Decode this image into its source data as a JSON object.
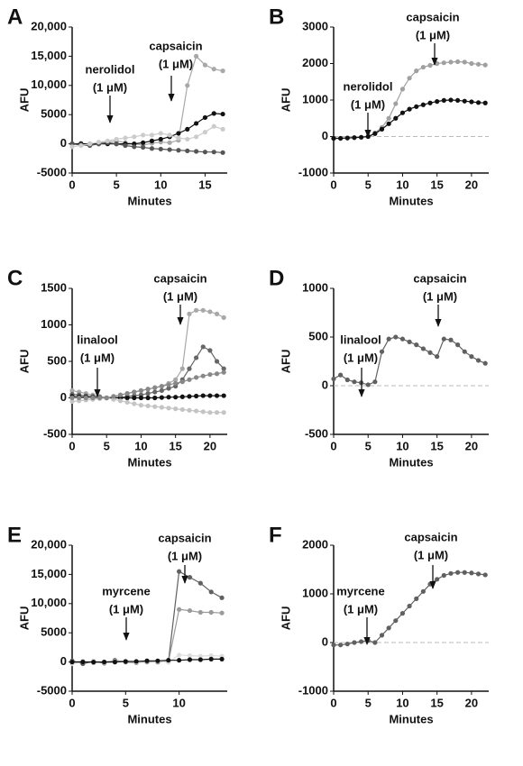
{
  "chart_data": [
    {
      "type": "line",
      "panel": "A",
      "xlabel": "Minutes",
      "ylabel": "AFU",
      "xlim": [
        0,
        17.5
      ],
      "xticks": [
        0,
        5,
        10,
        15
      ],
      "ylim": [
        -5000,
        20000
      ],
      "yticks": [
        {
          "value": -5000,
          "label": "-5000"
        },
        0,
        5000,
        {
          "value": 10000,
          "label": "10,000"
        },
        {
          "value": 15000,
          "label": "15,000"
        },
        {
          "value": 20000,
          "label": "20,000"
        }
      ],
      "annotations": [
        [
          "nerolidol",
          "(1 μM)"
        ],
        [
          "capsaicin",
          "(1 μM)"
        ]
      ],
      "x": [
        0,
        1,
        2,
        3,
        4,
        5,
        6,
        7,
        8,
        9,
        10,
        11,
        12,
        13,
        14,
        15,
        16,
        17
      ],
      "series": [
        {
          "color": "#a8a8a8",
          "values": [
            0,
            100,
            -100,
            200,
            300,
            500,
            200,
            0,
            -200,
            100,
            300,
            200,
            600,
            10000,
            15000,
            13500,
            12800,
            12500
          ]
        },
        {
          "color": "#111111",
          "values": [
            0,
            0,
            0,
            0,
            0,
            0,
            0,
            0,
            200,
            500,
            800,
            1200,
            1800,
            2500,
            3500,
            4500,
            5200,
            5100
          ]
        },
        {
          "color": "#555555",
          "values": [
            0,
            -200,
            -300,
            0,
            200,
            0,
            -300,
            -500,
            -600,
            -800,
            -900,
            -1000,
            -1100,
            -1200,
            -1300,
            -1400,
            -1400,
            -1500
          ]
        },
        {
          "color": "#cccccc",
          "values": [
            -500,
            -300,
            0,
            300,
            500,
            800,
            1000,
            1200,
            1500,
            1500,
            1800,
            1500,
            1000,
            800,
            1200,
            2000,
            3000,
            2500
          ]
        }
      ]
    },
    {
      "type": "line",
      "panel": "B",
      "xlabel": "Minutes",
      "ylabel": "AFU",
      "zero_line": true,
      "xlim": [
        0,
        22.5
      ],
      "xticks": [
        0,
        5,
        10,
        15,
        20
      ],
      "ylim": [
        -1000,
        3000
      ],
      "yticks": [
        -1000,
        0,
        1000,
        2000,
        3000
      ],
      "annotations": [
        [
          "nerolidol",
          "(1 μM)"
        ],
        [
          "capsaicin",
          "(1 μM)"
        ]
      ],
      "x": [
        0,
        1,
        2,
        3,
        4,
        5,
        6,
        7,
        8,
        9,
        10,
        11,
        12,
        13,
        14,
        15,
        16,
        17,
        18,
        19,
        20,
        21,
        22
      ],
      "series": [
        {
          "color": "#a0a0a0",
          "values": [
            -50,
            -50,
            -40,
            -30,
            -20,
            0,
            100,
            250,
            500,
            900,
            1300,
            1600,
            1800,
            1900,
            1950,
            2000,
            2020,
            2040,
            2050,
            2040,
            2000,
            1980,
            1960
          ]
        },
        {
          "color": "#111111",
          "values": [
            -50,
            -50,
            -40,
            -30,
            -20,
            0,
            80,
            200,
            350,
            500,
            650,
            750,
            820,
            870,
            920,
            960,
            990,
            1000,
            990,
            970,
            950,
            930,
            920
          ]
        }
      ]
    },
    {
      "type": "line",
      "panel": "C",
      "xlabel": "Minutes",
      "ylabel": "AFU",
      "xlim": [
        0,
        22.5
      ],
      "xticks": [
        0,
        5,
        10,
        15,
        20
      ],
      "ylim": [
        -500,
        1500
      ],
      "yticks": [
        -500,
        0,
        500,
        1000,
        1500
      ],
      "annotations": [
        [
          "linalool",
          "(1 μM)"
        ],
        [
          "capsaicin",
          "(1 μM)"
        ]
      ],
      "x": [
        0,
        1,
        2,
        3,
        4,
        5,
        6,
        7,
        8,
        9,
        10,
        11,
        12,
        13,
        14,
        15,
        16,
        17,
        18,
        19,
        20,
        21,
        22
      ],
      "series": [
        {
          "color": "#a8a8a8",
          "values": [
            100,
            80,
            60,
            40,
            20,
            0,
            20,
            40,
            60,
            80,
            100,
            120,
            140,
            160,
            200,
            250,
            400,
            1150,
            1200,
            1200,
            1180,
            1150,
            1100
          ]
        },
        {
          "color": "#666666",
          "values": [
            50,
            40,
            30,
            20,
            10,
            0,
            0,
            10,
            20,
            30,
            40,
            60,
            80,
            100,
            130,
            160,
            250,
            400,
            550,
            700,
            650,
            500,
            400
          ]
        },
        {
          "color": "#111111",
          "values": [
            20,
            15,
            10,
            5,
            0,
            0,
            0,
            0,
            0,
            0,
            0,
            0,
            0,
            5,
            10,
            10,
            15,
            20,
            25,
            30,
            30,
            30,
            30
          ]
        },
        {
          "color": "#c4c4c4",
          "values": [
            -50,
            -40,
            -30,
            -20,
            -10,
            0,
            -20,
            -40,
            -60,
            -80,
            -100,
            -110,
            -120,
            -130,
            -140,
            -150,
            -160,
            -170,
            -180,
            -190,
            -200,
            -200,
            -200
          ]
        },
        {
          "color": "#888888",
          "values": [
            0,
            0,
            0,
            0,
            0,
            0,
            20,
            40,
            60,
            80,
            100,
            120,
            140,
            160,
            180,
            200,
            220,
            250,
            280,
            300,
            320,
            330,
            350
          ]
        }
      ]
    },
    {
      "type": "line",
      "panel": "D",
      "xlabel": "Minutes",
      "ylabel": "AFU",
      "zero_line": true,
      "xlim": [
        0,
        22.5
      ],
      "xticks": [
        0,
        5,
        10,
        15,
        20
      ],
      "ylim": [
        -500,
        1000
      ],
      "yticks": [
        -500,
        0,
        500,
        1000
      ],
      "annotations": [
        [
          "linalool",
          "(1 μM)"
        ],
        [
          "capsaicin",
          "(1 μM)"
        ]
      ],
      "x": [
        0,
        1,
        2,
        3,
        4,
        5,
        6,
        7,
        8,
        9,
        10,
        11,
        12,
        13,
        14,
        15,
        16,
        17,
        18,
        19,
        20,
        21,
        22
      ],
      "series": [
        {
          "color": "#606060",
          "values": [
            70,
            110,
            60,
            40,
            30,
            10,
            40,
            350,
            480,
            500,
            480,
            450,
            420,
            380,
            340,
            300,
            480,
            470,
            420,
            350,
            300,
            260,
            230
          ]
        }
      ]
    },
    {
      "type": "line",
      "panel": "E",
      "xlabel": "Minutes",
      "ylabel": "AFU",
      "xlim": [
        0,
        14.5
      ],
      "xticks": [
        0,
        5,
        10
      ],
      "ylim": [
        -5000,
        20000
      ],
      "yticks": [
        {
          "value": -5000,
          "label": "-5000"
        },
        0,
        5000,
        {
          "value": 10000,
          "label": "10,000"
        },
        {
          "value": 15000,
          "label": "15,000"
        },
        {
          "value": 20000,
          "label": "20,000"
        }
      ],
      "annotations": [
        [
          "myrcene",
          "(1 μM)"
        ],
        [
          "capsaicin",
          "(1 μM)"
        ]
      ],
      "x": [
        0,
        1,
        2,
        3,
        4,
        5,
        6,
        7,
        8,
        9,
        10,
        11,
        12,
        13,
        14
      ],
      "series": [
        {
          "color": "#606060",
          "values": [
            200,
            -300,
            100,
            -200,
            300,
            0,
            -100,
            200,
            0,
            100,
            15500,
            14500,
            13500,
            12000,
            11000
          ]
        },
        {
          "color": "#9a9a9a",
          "values": [
            0,
            100,
            -100,
            0,
            200,
            100,
            0,
            0,
            100,
            0,
            9000,
            8800,
            8500,
            8500,
            8400
          ]
        },
        {
          "color": "#dddddd",
          "values": [
            -300,
            0,
            200,
            -100,
            0,
            100,
            0,
            200,
            100,
            0,
            1200,
            1100,
            1000,
            1100,
            1000
          ]
        },
        {
          "color": "#111111",
          "values": [
            0,
            0,
            0,
            0,
            0,
            100,
            100,
            200,
            200,
            300,
            300,
            400,
            400,
            500,
            500
          ]
        }
      ]
    },
    {
      "type": "line",
      "panel": "F",
      "xlabel": "Minutes",
      "ylabel": "AFU",
      "zero_line": true,
      "xlim": [
        0,
        22.5
      ],
      "xticks": [
        0,
        5,
        10,
        15,
        20
      ],
      "ylim": [
        -1000,
        2000
      ],
      "yticks": [
        -1000,
        0,
        1000,
        2000
      ],
      "annotations": [
        [
          "myrcene",
          "(1 μM)"
        ],
        [
          "capsaicin",
          "(1 μM)"
        ]
      ],
      "x": [
        0,
        1,
        2,
        3,
        4,
        5,
        6,
        7,
        8,
        9,
        10,
        11,
        12,
        13,
        14,
        15,
        16,
        17,
        18,
        19,
        20,
        21,
        22
      ],
      "series": [
        {
          "color": "#606060",
          "values": [
            -50,
            -50,
            -30,
            0,
            20,
            40,
            0,
            150,
            300,
            450,
            600,
            750,
            900,
            1050,
            1200,
            1300,
            1380,
            1420,
            1440,
            1440,
            1430,
            1410,
            1390
          ]
        }
      ]
    }
  ]
}
